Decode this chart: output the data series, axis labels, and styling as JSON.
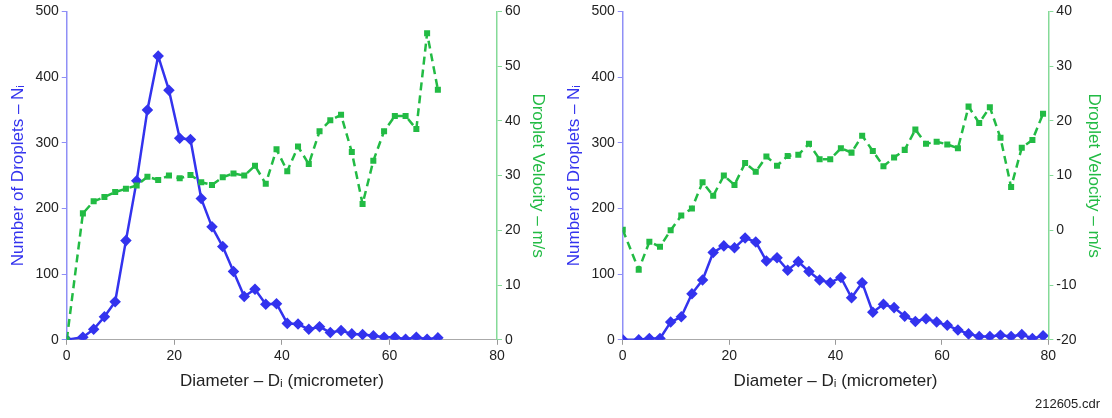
{
  "chart_data": [
    {
      "type": "line",
      "xlabel": "Diameter – Dᵢ (micrometer)",
      "ylabel": "Number of Droplets – Nᵢ",
      "y2label": "Droplet Velocity – m/s",
      "xlim": [
        0,
        80
      ],
      "xticks": [
        0,
        20,
        40,
        60,
        80
      ],
      "ylim": [
        0,
        500
      ],
      "yticks": [
        0,
        100,
        200,
        300,
        400,
        500
      ],
      "y2lim": [
        0,
        60
      ],
      "y2ticks": [
        0,
        10,
        20,
        30,
        40,
        50,
        60
      ],
      "grid": false,
      "legend": false,
      "series": [
        {
          "color": "#3333ee",
          "marker": "diamond",
          "line_style": "solid",
          "x": [
            0,
            3,
            5,
            7,
            9,
            11,
            13,
            15,
            17,
            19,
            21,
            23,
            25,
            27,
            29,
            31,
            33,
            35,
            37,
            39,
            41,
            43,
            45,
            47,
            49,
            51,
            53,
            55,
            57,
            59,
            61,
            63,
            65,
            67,
            69
          ],
          "values": [
            0,
            4,
            16,
            35,
            58,
            151,
            242,
            350,
            432,
            380,
            307,
            305,
            215,
            172,
            142,
            104,
            66,
            77,
            54,
            55,
            25,
            24,
            16,
            20,
            11,
            14,
            9,
            8,
            6,
            4,
            4,
            1,
            4,
            1,
            3
          ]
        },
        {
          "color": "#22bb44",
          "marker": "square",
          "line_style": "dashed",
          "axis": "y2",
          "x": [
            0,
            3,
            5,
            7,
            9,
            11,
            13,
            15,
            17,
            19,
            21,
            23,
            25,
            27,
            29,
            31,
            33,
            35,
            37,
            39,
            41,
            43,
            45,
            47,
            49,
            51,
            53,
            55,
            57,
            59,
            61,
            63,
            65,
            67,
            69
          ],
          "values": [
            0,
            23.1,
            25.3,
            26.1,
            27,
            27.6,
            28.2,
            29.8,
            29.2,
            30,
            29.5,
            30.1,
            28.8,
            28.3,
            29.7,
            30.4,
            30,
            31.8,
            28.5,
            34.8,
            30.8,
            35.3,
            32.1,
            38.1,
            40.1,
            41.1,
            34.3,
            24.8,
            32.7,
            38.1,
            40.9,
            40.9,
            38.5,
            56,
            45.7
          ]
        }
      ]
    },
    {
      "type": "line",
      "xlabel": "Diameter – Dᵢ (micrometer)",
      "ylabel": "Number of Droplets – Nᵢ",
      "y2label": "Droplet Velocity – m/s",
      "xlim": [
        0,
        80
      ],
      "xticks": [
        0,
        20,
        40,
        60,
        80
      ],
      "ylim": [
        0,
        500
      ],
      "yticks": [
        0,
        100,
        200,
        300,
        400,
        500
      ],
      "y2lim": [
        -20,
        40
      ],
      "y2ticks": [
        -20,
        -10,
        0,
        10,
        20,
        30,
        40
      ],
      "grid": false,
      "legend": false,
      "annotations": [
        "212605.cdr"
      ],
      "series": [
        {
          "color": "#3333ee",
          "marker": "diamond",
          "line_style": "solid",
          "x": [
            0,
            3,
            5,
            7,
            9,
            11,
            13,
            15,
            17,
            19,
            21,
            23,
            25,
            27,
            29,
            31,
            33,
            35,
            37,
            39,
            41,
            43,
            45,
            47,
            49,
            51,
            53,
            55,
            57,
            59,
            61,
            63,
            65,
            67,
            69,
            71,
            73,
            75,
            77,
            79
          ],
          "values": [
            0,
            0,
            2,
            2,
            27,
            35,
            70,
            91,
            133,
            143,
            140,
            155,
            149,
            120,
            125,
            106,
            119,
            104,
            91,
            87,
            95,
            64,
            87,
            42,
            54,
            49,
            36,
            28,
            32,
            27,
            22,
            15,
            9,
            5,
            5,
            7,
            5,
            8,
            2,
            6
          ]
        },
        {
          "color": "#22bb44",
          "marker": "square",
          "line_style": "dashed",
          "axis": "y2",
          "x": [
            0,
            3,
            5,
            7,
            9,
            11,
            13,
            15,
            17,
            19,
            21,
            23,
            25,
            27,
            29,
            31,
            33,
            35,
            37,
            39,
            41,
            43,
            45,
            47,
            49,
            51,
            53,
            55,
            57,
            59,
            61,
            63,
            65,
            67,
            69,
            71,
            73,
            75,
            77,
            79
          ],
          "values": [
            0.1,
            -7.2,
            -2.1,
            -3,
            0,
            2.7,
            4,
            8.8,
            6.3,
            10,
            8.3,
            12.3,
            10.7,
            13.5,
            11.8,
            13.6,
            13.8,
            15.8,
            13,
            13,
            15,
            14.2,
            17.3,
            14.5,
            11.7,
            13.3,
            14.7,
            18.4,
            15.8,
            16.2,
            15.7,
            15,
            22.6,
            19.6,
            22.5,
            16.9,
            7.9,
            15.1,
            16.5,
            21.3
          ]
        }
      ]
    }
  ]
}
